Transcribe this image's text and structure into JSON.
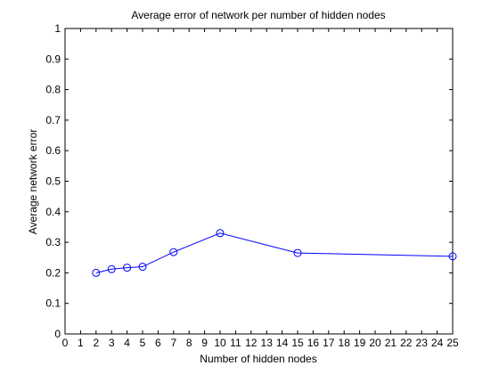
{
  "chart_data": {
    "type": "line",
    "title": "Average error of network per number of hidden nodes",
    "xlabel": "Number of hidden nodes",
    "ylabel": "Average network error",
    "xlim": [
      0,
      25
    ],
    "ylim": [
      0,
      1
    ],
    "xticks": [
      "0",
      "1",
      "2",
      "3",
      "4",
      "5",
      "6",
      "7",
      "8",
      "9",
      "10",
      "11",
      "12",
      "13",
      "14",
      "15",
      "16",
      "17",
      "18",
      "19",
      "20",
      "21",
      "22",
      "23",
      "24",
      "25"
    ],
    "yticks": [
      "0",
      "0.1",
      "0.2",
      "0.3",
      "0.4",
      "0.5",
      "0.6",
      "0.7",
      "0.8",
      "0.9",
      "1"
    ],
    "grid": false,
    "series": [
      {
        "x": [
          2,
          3,
          4,
          5,
          7,
          10,
          15,
          25
        ],
        "y": [
          0.2,
          0.212,
          0.217,
          0.22,
          0.268,
          0.33,
          0.265,
          0.254
        ],
        "color": "#0000ff",
        "marker": "circle"
      }
    ]
  }
}
